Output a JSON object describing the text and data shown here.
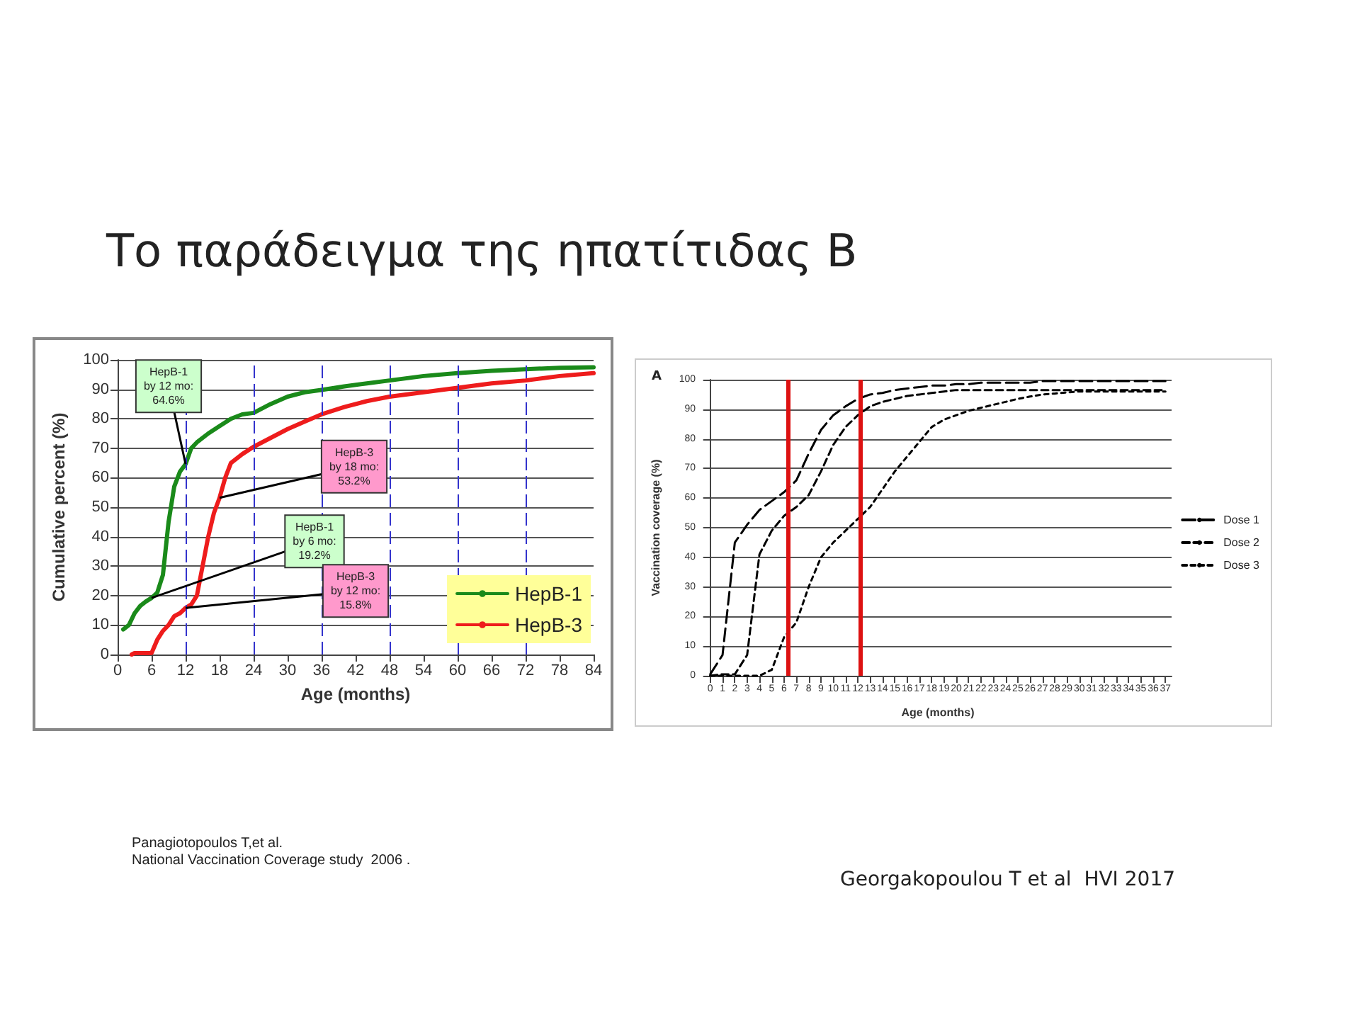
{
  "chart_data": [
    {
      "type": "line",
      "title": "Το παράδειγμα της ηπατίτιδας Β",
      "xlabel": "Age (months)",
      "ylabel": "Cumulative percent (%)",
      "xlim": [
        0,
        84
      ],
      "xticks": [
        0,
        6,
        12,
        18,
        24,
        30,
        36,
        42,
        48,
        54,
        60,
        66,
        72,
        78,
        84
      ],
      "ylim": [
        0,
        100
      ],
      "yticks": [
        0,
        10,
        20,
        30,
        40,
        50,
        60,
        70,
        80,
        90,
        100
      ],
      "grid": "y",
      "legend": "bottom right",
      "series": [
        {
          "name": "HepB-1",
          "color": "#1a8a1a",
          "x": [
            1,
            2,
            3,
            4,
            5,
            6,
            7,
            8,
            9,
            10,
            11,
            12,
            13,
            14,
            16,
            18,
            20,
            22,
            24,
            27,
            30,
            33,
            36,
            40,
            44,
            48,
            54,
            60,
            66,
            72,
            78,
            84
          ],
          "values": [
            8.5,
            10,
            14,
            16.5,
            18,
            19.2,
            21,
            27,
            45,
            57,
            62,
            64.6,
            70,
            72,
            75,
            77.5,
            80,
            81.5,
            82,
            85,
            87.5,
            89,
            89.8,
            91,
            92,
            93,
            94.5,
            95.5,
            96.3,
            96.8,
            97.3,
            97.5
          ]
        },
        {
          "name": "HepB-3",
          "color": "#ee1c1c",
          "x": [
            2.5,
            3,
            5,
            6,
            7,
            8,
            9,
            10,
            11,
            12,
            13,
            14,
            15,
            16,
            17,
            18,
            19,
            20,
            22,
            24,
            27,
            30,
            33,
            36,
            40,
            44,
            48,
            54,
            60,
            66,
            72,
            78,
            84
          ],
          "values": [
            0,
            0.5,
            0.5,
            0.5,
            5,
            8,
            10,
            13,
            14,
            15.8,
            17,
            20,
            30,
            40,
            48,
            53.2,
            60,
            65,
            68,
            70.5,
            73.5,
            76.5,
            79,
            81.5,
            84,
            86,
            87.5,
            89,
            90.5,
            92,
            93,
            94.5,
            95.5
          ]
        }
      ],
      "ref_lines": [
        {
          "axis": "x",
          "value": 12,
          "color": "#3333cc",
          "line_style": "dashed"
        },
        {
          "axis": "x",
          "value": 24,
          "color": "#3333cc",
          "line_style": "dashed"
        },
        {
          "axis": "x",
          "value": 36,
          "color": "#3333cc",
          "line_style": "dashed"
        },
        {
          "axis": "x",
          "value": 48,
          "color": "#3333cc",
          "line_style": "dashed"
        },
        {
          "axis": "x",
          "value": 60,
          "color": "#3333cc",
          "line_style": "dashed"
        },
        {
          "axis": "x",
          "value": 72,
          "color": "#3333cc",
          "line_style": "dashed"
        }
      ],
      "annotations": [
        {
          "text": "HepB-1\nby 12 mo:\n64.6%",
          "x": 12,
          "y": 64.6
        },
        {
          "text": "HepB-3\nby 18 mo:\n53.2%",
          "x": 18,
          "y": 53.2
        },
        {
          "text": "HepB-1\nby 6 mo:\n19.2%",
          "x": 6,
          "y": 19.2
        },
        {
          "text": "HepB-3\nby 12 mo:\n15.8%",
          "x": 12,
          "y": 15.8
        },
        "Panagiotopoulos T,et al.\nNational Vaccination Coverage study  2006 ."
      ]
    },
    {
      "type": "line",
      "xlabel": "Age (months)",
      "ylabel": "Vaccination coverage (%)",
      "xlim": [
        -0.5,
        37.5
      ],
      "xticks": [
        0,
        1,
        2,
        3,
        4,
        5,
        6,
        7,
        8,
        9,
        10,
        11,
        12,
        13,
        14,
        15,
        16,
        17,
        18,
        19,
        20,
        21,
        22,
        23,
        24,
        25,
        26,
        27,
        28,
        29,
        30,
        31,
        32,
        33,
        34,
        35,
        36,
        37
      ],
      "ylim": [
        0,
        100
      ],
      "yticks": [
        0,
        10,
        20,
        30,
        40,
        50,
        60,
        70,
        80,
        90,
        100
      ],
      "grid": "y",
      "legend": "right",
      "series": [
        {
          "name": "Dose 1",
          "color": "#000000",
          "line_style": "dashed",
          "x": [
            0,
            1,
            2,
            3,
            4,
            5,
            6,
            7,
            8,
            9,
            10,
            11,
            12,
            13,
            14,
            15,
            16,
            17,
            18,
            19,
            20,
            21,
            22,
            23,
            24,
            25,
            26,
            27,
            28,
            29,
            30,
            31,
            32,
            33,
            34,
            35,
            36,
            37
          ],
          "values": [
            0.5,
            7,
            45,
            51,
            56,
            59,
            62,
            66,
            75,
            83,
            88,
            91,
            93.5,
            95,
            95.5,
            96.5,
            97,
            97.5,
            98,
            98,
            98.5,
            98.5,
            99,
            99,
            99,
            99,
            99,
            99.5,
            99.5,
            99.5,
            99.5,
            99.5,
            99.5,
            99.5,
            99.5,
            99.5,
            99.5,
            99.5
          ]
        },
        {
          "name": "Dose 2",
          "color": "#000000",
          "line_style": "dashed",
          "x": [
            0,
            1,
            2,
            3,
            4,
            5,
            6,
            7,
            8,
            9,
            10,
            11,
            12,
            13,
            14,
            15,
            16,
            17,
            18,
            19,
            20,
            21,
            22,
            23,
            24,
            25,
            26,
            27,
            28,
            29,
            30,
            31,
            32,
            33,
            34,
            35,
            36,
            37
          ],
          "values": [
            0,
            0.5,
            0.5,
            7,
            41,
            49,
            54,
            57,
            61,
            69,
            78,
            84,
            88,
            91,
            92.5,
            93.5,
            94.5,
            95,
            95.5,
            96,
            96.5,
            96.5,
            96.5,
            96.5,
            96.5,
            96.5,
            96.5,
            96.5,
            96.5,
            96.5,
            96.5,
            96.5,
            96.5,
            96.5,
            96.5,
            96.5,
            96.5,
            96.5
          ]
        },
        {
          "name": "Dose 3",
          "color": "#000000",
          "line_style": "dotted",
          "x": [
            0,
            1,
            2,
            3,
            4,
            5,
            6,
            7,
            8,
            9,
            10,
            11,
            12,
            13,
            14,
            15,
            16,
            17,
            18,
            19,
            20,
            21,
            22,
            23,
            24,
            25,
            26,
            27,
            28,
            29,
            30,
            31,
            32,
            33,
            34,
            35,
            36,
            37
          ],
          "values": [
            0,
            0,
            0,
            0,
            0,
            2,
            13,
            18,
            30,
            40,
            45,
            49,
            53,
            57,
            63,
            69,
            74,
            79,
            84,
            86.5,
            88,
            89.5,
            90.5,
            91.5,
            92.5,
            93.5,
            94.3,
            95,
            95.3,
            95.7,
            96,
            96,
            96,
            96,
            96,
            96,
            96,
            96
          ]
        }
      ],
      "ref_lines": [
        {
          "axis": "x",
          "value": 6.3,
          "color": "#dd1111",
          "line_style": "solid"
        },
        {
          "axis": "x",
          "value": 12.2,
          "color": "#dd1111",
          "line_style": "solid"
        }
      ],
      "annotations": [
        "A",
        "Georgakopoulou T et al  HVI 2017"
      ]
    }
  ]
}
